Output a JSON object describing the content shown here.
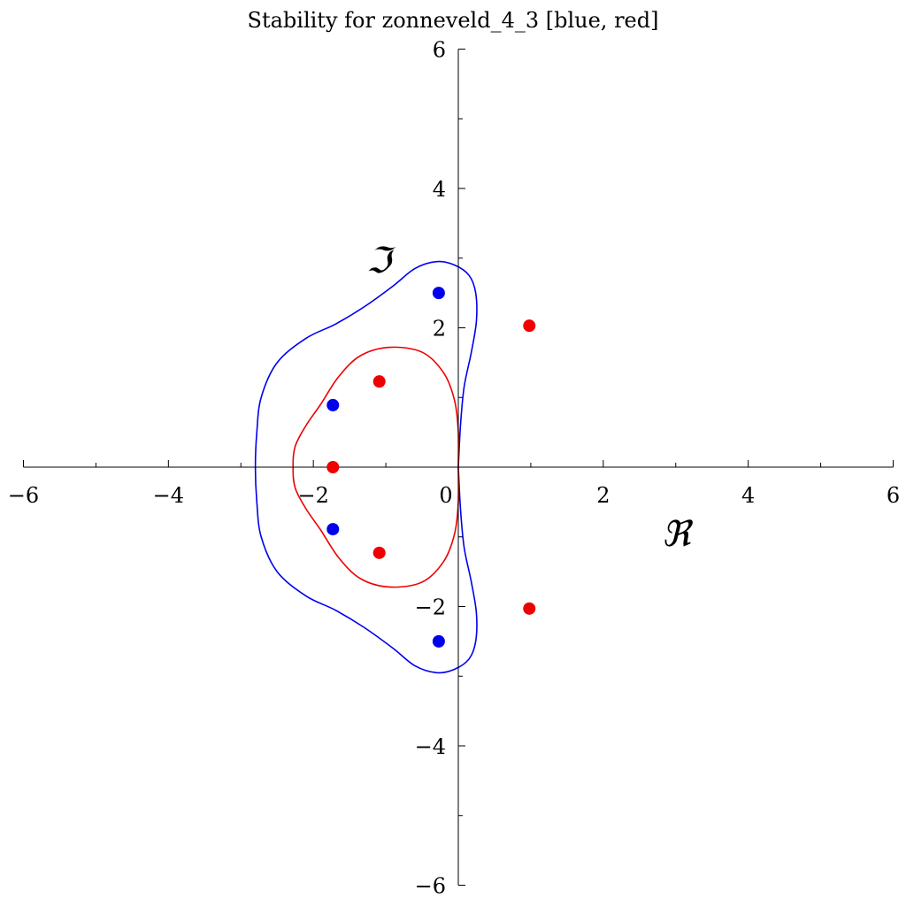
{
  "chart_data": {
    "type": "scatter",
    "title": "Stability for zonneveld_4_3 [blue, red]",
    "xlabel": "ℜ",
    "ylabel": "ℑ",
    "xlim": [
      -6,
      6
    ],
    "ylim": [
      -6,
      6
    ],
    "x_ticks": [
      {
        "value": -6,
        "label": "−6"
      },
      {
        "value": -4,
        "label": "−4"
      },
      {
        "value": -2,
        "label": "−2"
      },
      {
        "value": 0,
        "label": "0"
      },
      {
        "value": 2,
        "label": "2"
      },
      {
        "value": 4,
        "label": "4"
      },
      {
        "value": 6,
        "label": "6"
      }
    ],
    "y_ticks": [
      {
        "value": 6,
        "label": "6"
      },
      {
        "value": 4,
        "label": "4"
      },
      {
        "value": 2,
        "label": "2"
      },
      {
        "value": -2,
        "label": "−2"
      },
      {
        "value": -4,
        "label": "−4"
      },
      {
        "value": -6,
        "label": "−6"
      }
    ],
    "minor_tick_step": 1,
    "grid": false,
    "curves": [
      {
        "color": "#0000ee",
        "points": [
          [
            0,
            0
          ],
          [
            0.03,
            0.6
          ],
          [
            0.08,
            1.15
          ],
          [
            0.18,
            1.65
          ],
          [
            0.25,
            2.1
          ],
          [
            0.24,
            2.5
          ],
          [
            0.15,
            2.75
          ],
          [
            -0.05,
            2.9
          ],
          [
            -0.3,
            2.95
          ],
          [
            -0.6,
            2.85
          ],
          [
            -0.9,
            2.6
          ],
          [
            -1.3,
            2.3
          ],
          [
            -1.7,
            2.05
          ],
          [
            -2.1,
            1.85
          ],
          [
            -2.5,
            1.5
          ],
          [
            -2.72,
            1.0
          ],
          [
            -2.78,
            0.5
          ],
          [
            -2.8,
            0
          ],
          [
            -2.78,
            -0.5
          ],
          [
            -2.72,
            -1.0
          ],
          [
            -2.5,
            -1.5
          ],
          [
            -2.1,
            -1.85
          ],
          [
            -1.7,
            -2.05
          ],
          [
            -1.3,
            -2.3
          ],
          [
            -0.9,
            -2.6
          ],
          [
            -0.6,
            -2.85
          ],
          [
            -0.3,
            -2.95
          ],
          [
            -0.05,
            -2.9
          ],
          [
            0.15,
            -2.75
          ],
          [
            0.24,
            -2.5
          ],
          [
            0.25,
            -2.1
          ],
          [
            0.18,
            -1.65
          ],
          [
            0.08,
            -1.15
          ],
          [
            0.03,
            -0.6
          ],
          [
            0,
            0
          ]
        ]
      },
      {
        "color": "#ee0000",
        "points": [
          [
            0,
            0
          ],
          [
            0,
            0.5
          ],
          [
            -0.05,
            0.95
          ],
          [
            -0.2,
            1.35
          ],
          [
            -0.5,
            1.65
          ],
          [
            -0.95,
            1.72
          ],
          [
            -1.35,
            1.6
          ],
          [
            -1.65,
            1.3
          ],
          [
            -1.9,
            0.9
          ],
          [
            -2.1,
            0.6
          ],
          [
            -2.25,
            0.3
          ],
          [
            -2.28,
            0
          ],
          [
            -2.25,
            -0.3
          ],
          [
            -2.1,
            -0.6
          ],
          [
            -1.9,
            -0.9
          ],
          [
            -1.65,
            -1.3
          ],
          [
            -1.35,
            -1.6
          ],
          [
            -0.95,
            -1.72
          ],
          [
            -0.5,
            -1.65
          ],
          [
            -0.2,
            -1.35
          ],
          [
            -0.05,
            -0.95
          ],
          [
            0,
            -0.5
          ],
          [
            0,
            0
          ]
        ]
      }
    ],
    "series": [
      {
        "color": "#0000ee",
        "points": [
          {
            "x": -0.27,
            "y": 2.5
          },
          {
            "x": -1.73,
            "y": 0.89
          },
          {
            "x": -1.73,
            "y": -0.89
          },
          {
            "x": -0.27,
            "y": -2.5
          }
        ]
      },
      {
        "color": "#ee0000",
        "points": [
          {
            "x": 0.98,
            "y": 2.03
          },
          {
            "x": -1.09,
            "y": 1.23
          },
          {
            "x": -1.73,
            "y": 0.0
          },
          {
            "x": -1.09,
            "y": -1.23
          },
          {
            "x": 0.98,
            "y": -2.03
          }
        ]
      }
    ]
  }
}
